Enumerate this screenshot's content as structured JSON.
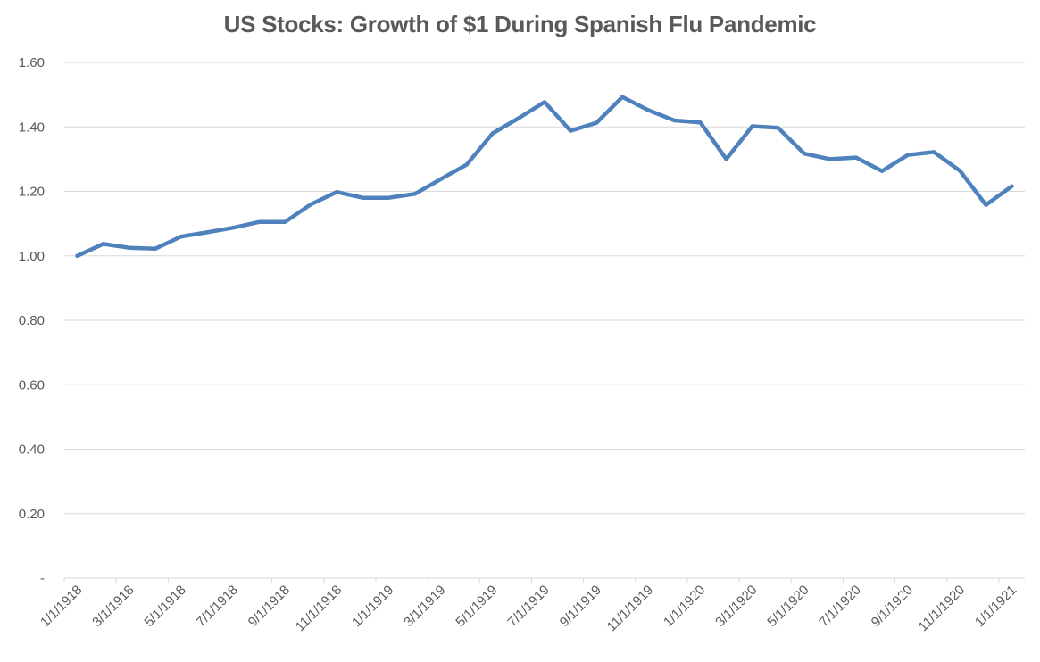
{
  "chart_data": {
    "type": "line",
    "title": "US Stocks: Growth of $1 During Spanish Flu Pandemic",
    "xlabel": "",
    "ylabel": "",
    "ylim": [
      0,
      1.6
    ],
    "yticks": [
      0,
      0.2,
      0.4,
      0.6,
      0.8,
      1.0,
      1.2,
      1.4,
      1.6
    ],
    "ytick_labels": [
      "-",
      "0.20",
      "0.40",
      "0.60",
      "0.80",
      "1.00",
      "1.20",
      "1.40",
      "1.60"
    ],
    "grid": true,
    "legend": "none",
    "x": [
      "1/1/1918",
      "2/1/1918",
      "3/1/1918",
      "4/1/1918",
      "5/1/1918",
      "6/1/1918",
      "7/1/1918",
      "8/1/1918",
      "9/1/1918",
      "10/1/1918",
      "11/1/1918",
      "12/1/1918",
      "1/1/1919",
      "2/1/1919",
      "3/1/1919",
      "4/1/1919",
      "5/1/1919",
      "6/1/1919",
      "7/1/1919",
      "8/1/1919",
      "9/1/1919",
      "10/1/1919",
      "11/1/1919",
      "12/1/1919",
      "1/1/1920",
      "2/1/1920",
      "3/1/1920",
      "4/1/1920",
      "5/1/1920",
      "6/1/1920",
      "7/1/1920",
      "8/1/1920",
      "9/1/1920",
      "10/1/1920",
      "11/1/1920",
      "12/1/1920",
      "1/1/1921"
    ],
    "xtick_labels": [
      "1/1/1918",
      "3/1/1918",
      "5/1/1918",
      "7/1/1918",
      "9/1/1918",
      "11/1/1918",
      "1/1/1919",
      "3/1/1919",
      "5/1/1919",
      "7/1/1919",
      "9/1/1919",
      "11/1/1919",
      "1/1/1920",
      "3/1/1920",
      "5/1/1920",
      "7/1/1920",
      "9/1/1920",
      "11/1/1920",
      "1/1/1921"
    ],
    "series": [
      {
        "name": "US Stocks",
        "color": "#4f81bd",
        "values": [
          1.0,
          1.037,
          1.025,
          1.022,
          1.06,
          1.073,
          1.087,
          1.105,
          1.105,
          1.16,
          1.198,
          1.18,
          1.18,
          1.192,
          1.238,
          1.283,
          1.38,
          1.427,
          1.477,
          1.388,
          1.413,
          1.493,
          1.452,
          1.42,
          1.414,
          1.3,
          1.402,
          1.397,
          1.317,
          1.3,
          1.305,
          1.263,
          1.313,
          1.322,
          1.264,
          1.158,
          1.216
        ]
      }
    ]
  },
  "colors": {
    "line": "#4f81bd",
    "grid": "#d9d9d9",
    "text": "#595959"
  }
}
